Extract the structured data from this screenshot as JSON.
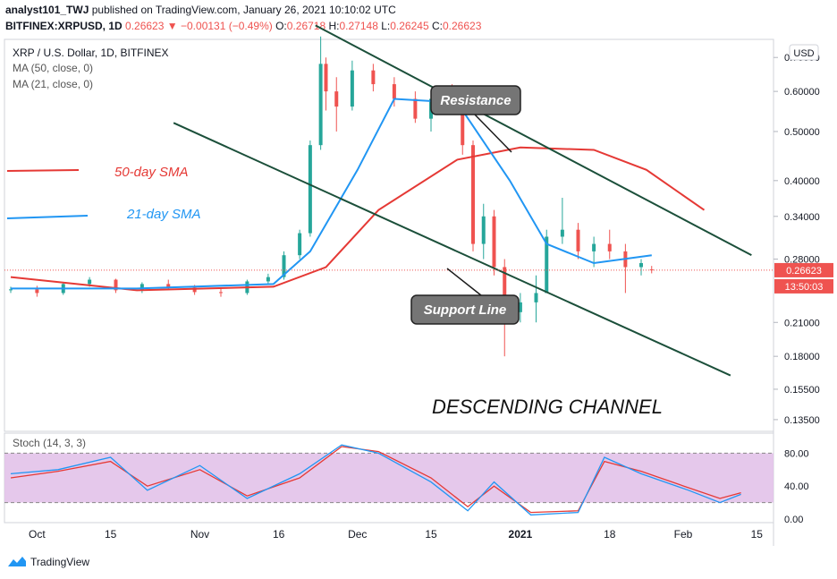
{
  "header": {
    "author": "analyst101_TWJ",
    "published": "published on TradingView.com, January 26, 2021 10:10:02 UTC",
    "symbol": "BITFINEX:XRPUSD, 1D",
    "last": "0.26623",
    "change": "−0.00131 (−0.49%)",
    "o_label": "O:",
    "o": "0.26718",
    "h_label": "H:",
    "h": "0.27148",
    "l_label": "L:",
    "l": "0.26245",
    "c_label": "C:",
    "c": "0.26623"
  },
  "legend": {
    "title": "XRP / U.S. Dollar, 1D, BITFINEX",
    "ma50": "MA (50, close, 0)",
    "ma21": "MA (21, close, 0)",
    "stoch": "Stoch (14, 3, 3)"
  },
  "annotations": {
    "sma50": "50-day SMA",
    "sma21": "21-day SMA",
    "resistance": "Resistance",
    "support": "Support Line",
    "channel": "DESCENDING CHANNEL"
  },
  "price_axis": {
    "currency": "USD",
    "ticks": [
      "0.70000",
      "0.60000",
      "0.50000",
      "0.40000",
      "0.34000",
      "0.28000",
      "0.21000",
      "0.18000",
      "0.15500",
      "0.13500"
    ],
    "last_price": "0.26623",
    "countdown": "13:50:03"
  },
  "stoch_axis": {
    "ticks": [
      "80.00",
      "40.00",
      "0.00"
    ]
  },
  "time_axis": {
    "labels": [
      "Oct",
      "15",
      "Nov",
      "16",
      "Dec",
      "15",
      "2021",
      "18",
      "Feb",
      "15"
    ]
  },
  "footer": {
    "brand": "TradingView"
  },
  "colors": {
    "up": "#26a69a",
    "down": "#ef5350",
    "ma50": "#e53935",
    "ma21": "#2196f3",
    "channel": "#1b4f3a",
    "stoch_k": "#2196f3",
    "stoch_d": "#e53935",
    "stoch_band": "#e1bee7"
  },
  "chart_data": {
    "type": "candlestick",
    "title": "XRP / U.S. Dollar, 1D, BITFINEX",
    "y_scale": "log",
    "ylim": [
      0.128,
      0.76
    ],
    "x_range": [
      "2020-09-26",
      "2021-02-17"
    ],
    "candles": [
      [
        "2020-09-26",
        0.243,
        0.247,
        0.24,
        0.244
      ],
      [
        "2020-10-01",
        0.244,
        0.248,
        0.236,
        0.24
      ],
      [
        "2020-10-06",
        0.24,
        0.252,
        0.238,
        0.25
      ],
      [
        "2020-10-11",
        0.25,
        0.258,
        0.247,
        0.255
      ],
      [
        "2020-10-16",
        0.255,
        0.256,
        0.24,
        0.243
      ],
      [
        "2020-10-21",
        0.243,
        0.252,
        0.24,
        0.25
      ],
      [
        "2020-10-26",
        0.25,
        0.255,
        0.244,
        0.246
      ],
      [
        "2020-10-31",
        0.246,
        0.249,
        0.238,
        0.241
      ],
      [
        "2020-11-05",
        0.241,
        0.246,
        0.236,
        0.24
      ],
      [
        "2020-11-10",
        0.24,
        0.255,
        0.238,
        0.253
      ],
      [
        "2020-11-14",
        0.253,
        0.262,
        0.25,
        0.258
      ],
      [
        "2020-11-17",
        0.258,
        0.29,
        0.255,
        0.285
      ],
      [
        "2020-11-20",
        0.285,
        0.32,
        0.28,
        0.315
      ],
      [
        "2020-11-22",
        0.315,
        0.48,
        0.31,
        0.47
      ],
      [
        "2020-11-24",
        0.47,
        0.77,
        0.46,
        0.68
      ],
      [
        "2020-11-25",
        0.68,
        0.7,
        0.55,
        0.6
      ],
      [
        "2020-11-27",
        0.6,
        0.64,
        0.5,
        0.56
      ],
      [
        "2020-11-30",
        0.56,
        0.69,
        0.55,
        0.66
      ],
      [
        "2020-12-04",
        0.66,
        0.68,
        0.6,
        0.62
      ],
      [
        "2020-12-08",
        0.62,
        0.64,
        0.56,
        0.58
      ],
      [
        "2020-12-12",
        0.58,
        0.6,
        0.52,
        0.53
      ],
      [
        "2020-12-15",
        0.53,
        0.6,
        0.5,
        0.58
      ],
      [
        "2020-12-19",
        0.58,
        0.62,
        0.55,
        0.56
      ],
      [
        "2020-12-21",
        0.56,
        0.57,
        0.45,
        0.47
      ],
      [
        "2020-12-23",
        0.47,
        0.48,
        0.29,
        0.3
      ],
      [
        "2020-12-25",
        0.3,
        0.36,
        0.28,
        0.34
      ],
      [
        "2020-12-27",
        0.34,
        0.35,
        0.26,
        0.27
      ],
      [
        "2020-12-29",
        0.27,
        0.28,
        0.18,
        0.22
      ],
      [
        "2021-01-01",
        0.22,
        0.24,
        0.21,
        0.23
      ],
      [
        "2021-01-04",
        0.23,
        0.26,
        0.21,
        0.24
      ],
      [
        "2021-01-06",
        0.24,
        0.32,
        0.24,
        0.31
      ],
      [
        "2021-01-09",
        0.31,
        0.37,
        0.3,
        0.32
      ],
      [
        "2021-01-12",
        0.32,
        0.33,
        0.28,
        0.29
      ],
      [
        "2021-01-15",
        0.29,
        0.31,
        0.27,
        0.3
      ],
      [
        "2021-01-18",
        0.3,
        0.32,
        0.28,
        0.29
      ],
      [
        "2021-01-21",
        0.29,
        0.3,
        0.24,
        0.27
      ],
      [
        "2021-01-24",
        0.27,
        0.28,
        0.26,
        0.275
      ],
      [
        "2021-01-26",
        0.26718,
        0.27148,
        0.26245,
        0.26623
      ]
    ],
    "series": [
      {
        "name": "MA (50, close, 0)",
        "points": [
          [
            "2020-09-26",
            0.258
          ],
          [
            "2020-10-20",
            0.243
          ],
          [
            "2020-11-15",
            0.247
          ],
          [
            "2020-11-25",
            0.27
          ],
          [
            "2020-12-05",
            0.35
          ],
          [
            "2020-12-20",
            0.44
          ],
          [
            "2021-01-01",
            0.465
          ],
          [
            "2021-01-15",
            0.46
          ],
          [
            "2021-01-25",
            0.42
          ],
          [
            "2021-02-05",
            0.35
          ]
        ]
      },
      {
        "name": "MA (21, close, 0)",
        "points": [
          [
            "2020-09-26",
            0.245
          ],
          [
            "2020-10-20",
            0.245
          ],
          [
            "2020-11-15",
            0.25
          ],
          [
            "2020-11-22",
            0.29
          ],
          [
            "2020-12-01",
            0.42
          ],
          [
            "2020-12-08",
            0.58
          ],
          [
            "2020-12-20",
            0.57
          ],
          [
            "2020-12-30",
            0.4
          ],
          [
            "2021-01-06",
            0.3
          ],
          [
            "2021-01-15",
            0.275
          ],
          [
            "2021-01-26",
            0.285
          ]
        ]
      }
    ],
    "channel_lines": [
      {
        "label": "Resistance",
        "from": [
          "2020-11-23",
          0.81
        ],
        "to": [
          "2021-02-14",
          0.285
        ]
      },
      {
        "label": "Support Line",
        "from": [
          "2020-10-27",
          0.52
        ],
        "to": [
          "2021-02-10",
          0.165
        ]
      }
    ],
    "stochastic": {
      "name": "Stoch (14, 3, 3)",
      "ylim": [
        0,
        100
      ],
      "band": [
        20,
        80
      ],
      "k": [
        [
          "2020-09-26",
          55
        ],
        [
          "2020-10-05",
          60
        ],
        [
          "2020-10-15",
          75
        ],
        [
          "2020-10-22",
          35
        ],
        [
          "2020-11-01",
          65
        ],
        [
          "2020-11-10",
          25
        ],
        [
          "2020-11-20",
          55
        ],
        [
          "2020-11-28",
          90
        ],
        [
          "2020-12-05",
          80
        ],
        [
          "2020-12-15",
          45
        ],
        [
          "2020-12-22",
          10
        ],
        [
          "2020-12-27",
          45
        ],
        [
          "2021-01-03",
          5
        ],
        [
          "2021-01-12",
          8
        ],
        [
          "2021-01-17",
          75
        ],
        [
          "2021-01-24",
          55
        ],
        [
          "2021-02-02",
          35
        ],
        [
          "2021-02-08",
          20
        ],
        [
          "2021-02-12",
          30
        ]
      ],
      "d": [
        [
          "2020-09-26",
          50
        ],
        [
          "2020-10-05",
          58
        ],
        [
          "2020-10-15",
          70
        ],
        [
          "2020-10-22",
          40
        ],
        [
          "2020-11-01",
          60
        ],
        [
          "2020-11-10",
          28
        ],
        [
          "2020-11-20",
          50
        ],
        [
          "2020-11-28",
          88
        ],
        [
          "2020-12-05",
          82
        ],
        [
          "2020-12-15",
          50
        ],
        [
          "2020-12-22",
          15
        ],
        [
          "2020-12-27",
          40
        ],
        [
          "2021-01-03",
          8
        ],
        [
          "2021-01-12",
          10
        ],
        [
          "2021-01-17",
          70
        ],
        [
          "2021-01-24",
          58
        ],
        [
          "2021-02-02",
          38
        ],
        [
          "2021-02-08",
          25
        ],
        [
          "2021-02-12",
          32
        ]
      ]
    }
  }
}
